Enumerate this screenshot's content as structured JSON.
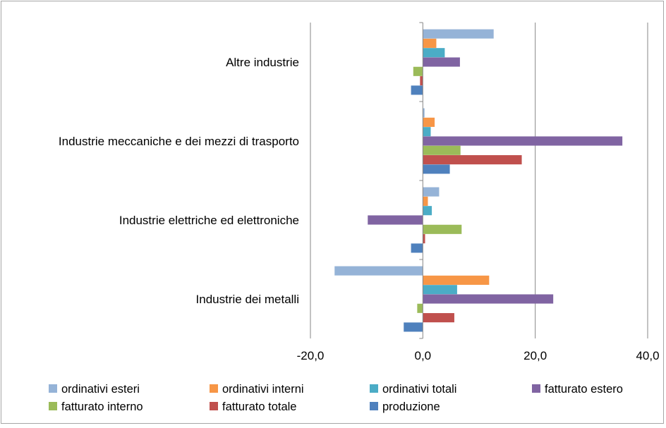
{
  "chart_data": {
    "type": "bar",
    "orientation": "horizontal",
    "categories": [
      "Altre industrie",
      "Industrie meccaniche e dei mezzi di trasporto",
      "Industrie elettriche ed elettroniche",
      "Industrie dei metalli"
    ],
    "series": [
      {
        "name": "ordinativi esteri",
        "color": "#95b3d7",
        "values": [
          12.6,
          0.3,
          2.9,
          -15.7
        ]
      },
      {
        "name": "ordinativi interni",
        "color": "#f79646",
        "values": [
          2.4,
          2.1,
          0.9,
          11.8
        ]
      },
      {
        "name": "ordinativi totali",
        "color": "#4bacc6",
        "values": [
          3.9,
          1.4,
          1.6,
          6.1
        ]
      },
      {
        "name": "fatturato estero",
        "color": "#8064a2",
        "values": [
          6.6,
          35.5,
          -9.8,
          23.2
        ]
      },
      {
        "name": "fatturato interno",
        "color": "#9bbb59",
        "values": [
          -1.7,
          6.7,
          6.9,
          -1.0
        ]
      },
      {
        "name": "fatturato totale",
        "color": "#c0504d",
        "values": [
          -0.5,
          17.6,
          0.4,
          5.6
        ]
      },
      {
        "name": "produzione",
        "color": "#4f81bd",
        "values": [
          -2.1,
          4.8,
          -2.1,
          -3.4
        ]
      }
    ],
    "xlim": [
      -20,
      40
    ],
    "xticks": [
      -20,
      0,
      20,
      40
    ],
    "tick_labels": [
      "-20,0",
      "0,0",
      "20,0",
      "40,0"
    ],
    "gridlines": "vertical",
    "legend_position": "bottom",
    "title": "",
    "xlabel": "",
    "ylabel": ""
  }
}
